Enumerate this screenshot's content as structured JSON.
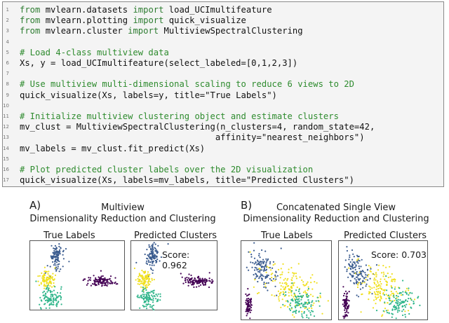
{
  "code_lines": [
    {
      "n": "1",
      "kw1": "from",
      "a": " mvlearn.datasets ",
      "kw2": "import",
      "b": " load_UCImultifeature",
      "comment": ""
    },
    {
      "n": "2",
      "kw1": "from",
      "a": " mvlearn.plotting ",
      "kw2": "import",
      "b": " quick_visualize",
      "comment": ""
    },
    {
      "n": "3",
      "kw1": "from",
      "a": " mvlearn.cluster ",
      "kw2": "import",
      "b": " MultiviewSpectralClustering",
      "comment": ""
    },
    {
      "n": "4",
      "kw1": "",
      "a": "",
      "kw2": "",
      "b": "",
      "comment": ""
    },
    {
      "n": "5",
      "kw1": "",
      "a": "",
      "kw2": "",
      "b": "",
      "comment": "# Load 4-class multiview data"
    },
    {
      "n": "6",
      "kw1": "",
      "a": "Xs, y = load_UCImultifeature(select_labeled=[0,1,2,3])",
      "kw2": "",
      "b": "",
      "comment": ""
    },
    {
      "n": "7",
      "kw1": "",
      "a": "",
      "kw2": "",
      "b": "",
      "comment": ""
    },
    {
      "n": "8",
      "kw1": "",
      "a": "",
      "kw2": "",
      "b": "",
      "comment": "# Use multiview multi-dimensional scaling to reduce 6 views to 2D"
    },
    {
      "n": "9",
      "kw1": "",
      "a": "quick_visualize(Xs, labels=y, title=\"True Labels\")",
      "kw2": "",
      "b": "",
      "comment": ""
    },
    {
      "n": "10",
      "kw1": "",
      "a": "",
      "kw2": "",
      "b": "",
      "comment": ""
    },
    {
      "n": "11",
      "kw1": "",
      "a": "",
      "kw2": "",
      "b": "",
      "comment": "# Initialize multiview clustering object and estimate clusters"
    },
    {
      "n": "12",
      "kw1": "",
      "a": "mv_clust = MultiviewSpectralClustering(n_clusters=4, random_state=42,",
      "kw2": "",
      "b": "",
      "comment": ""
    },
    {
      "n": "13",
      "kw1": "",
      "a": "                                      affinity=\"nearest_neighbors\")",
      "kw2": "",
      "b": "",
      "comment": ""
    },
    {
      "n": "14",
      "kw1": "",
      "a": "mv_labels = mv_clust.fit_predict(Xs)",
      "kw2": "",
      "b": "",
      "comment": ""
    },
    {
      "n": "15",
      "kw1": "",
      "a": "",
      "kw2": "",
      "b": "",
      "comment": ""
    },
    {
      "n": "16",
      "kw1": "",
      "a": "",
      "kw2": "",
      "b": "",
      "comment": "# Plot predicted cluster labels over the 2D visualization"
    },
    {
      "n": "17",
      "kw1": "",
      "a": "quick_visualize(Xs, labels=mv_labels, title=\"Predicted Clusters\")",
      "kw2": "",
      "b": "",
      "comment": ""
    }
  ],
  "panel_a": {
    "letter": "A)",
    "title_line1": "Multiview",
    "title_line2": "Dimensionality Reduction and Clustering",
    "left_label": "True Labels",
    "right_label": "Predicted Clusters",
    "score": "Score: 0.962"
  },
  "panel_b": {
    "letter": "B)",
    "title_line1": "Concatenated Single View",
    "title_line2": "Dimensionality Reduction and Clustering",
    "left_label": "True Labels",
    "right_label": "Predicted Clusters",
    "score": "Score: 0.703"
  },
  "cluster_colors": {
    "blue": "#3b5c8f",
    "yellow": "#f0e020",
    "teal": "#2fb58a",
    "purple": "#440154"
  }
}
